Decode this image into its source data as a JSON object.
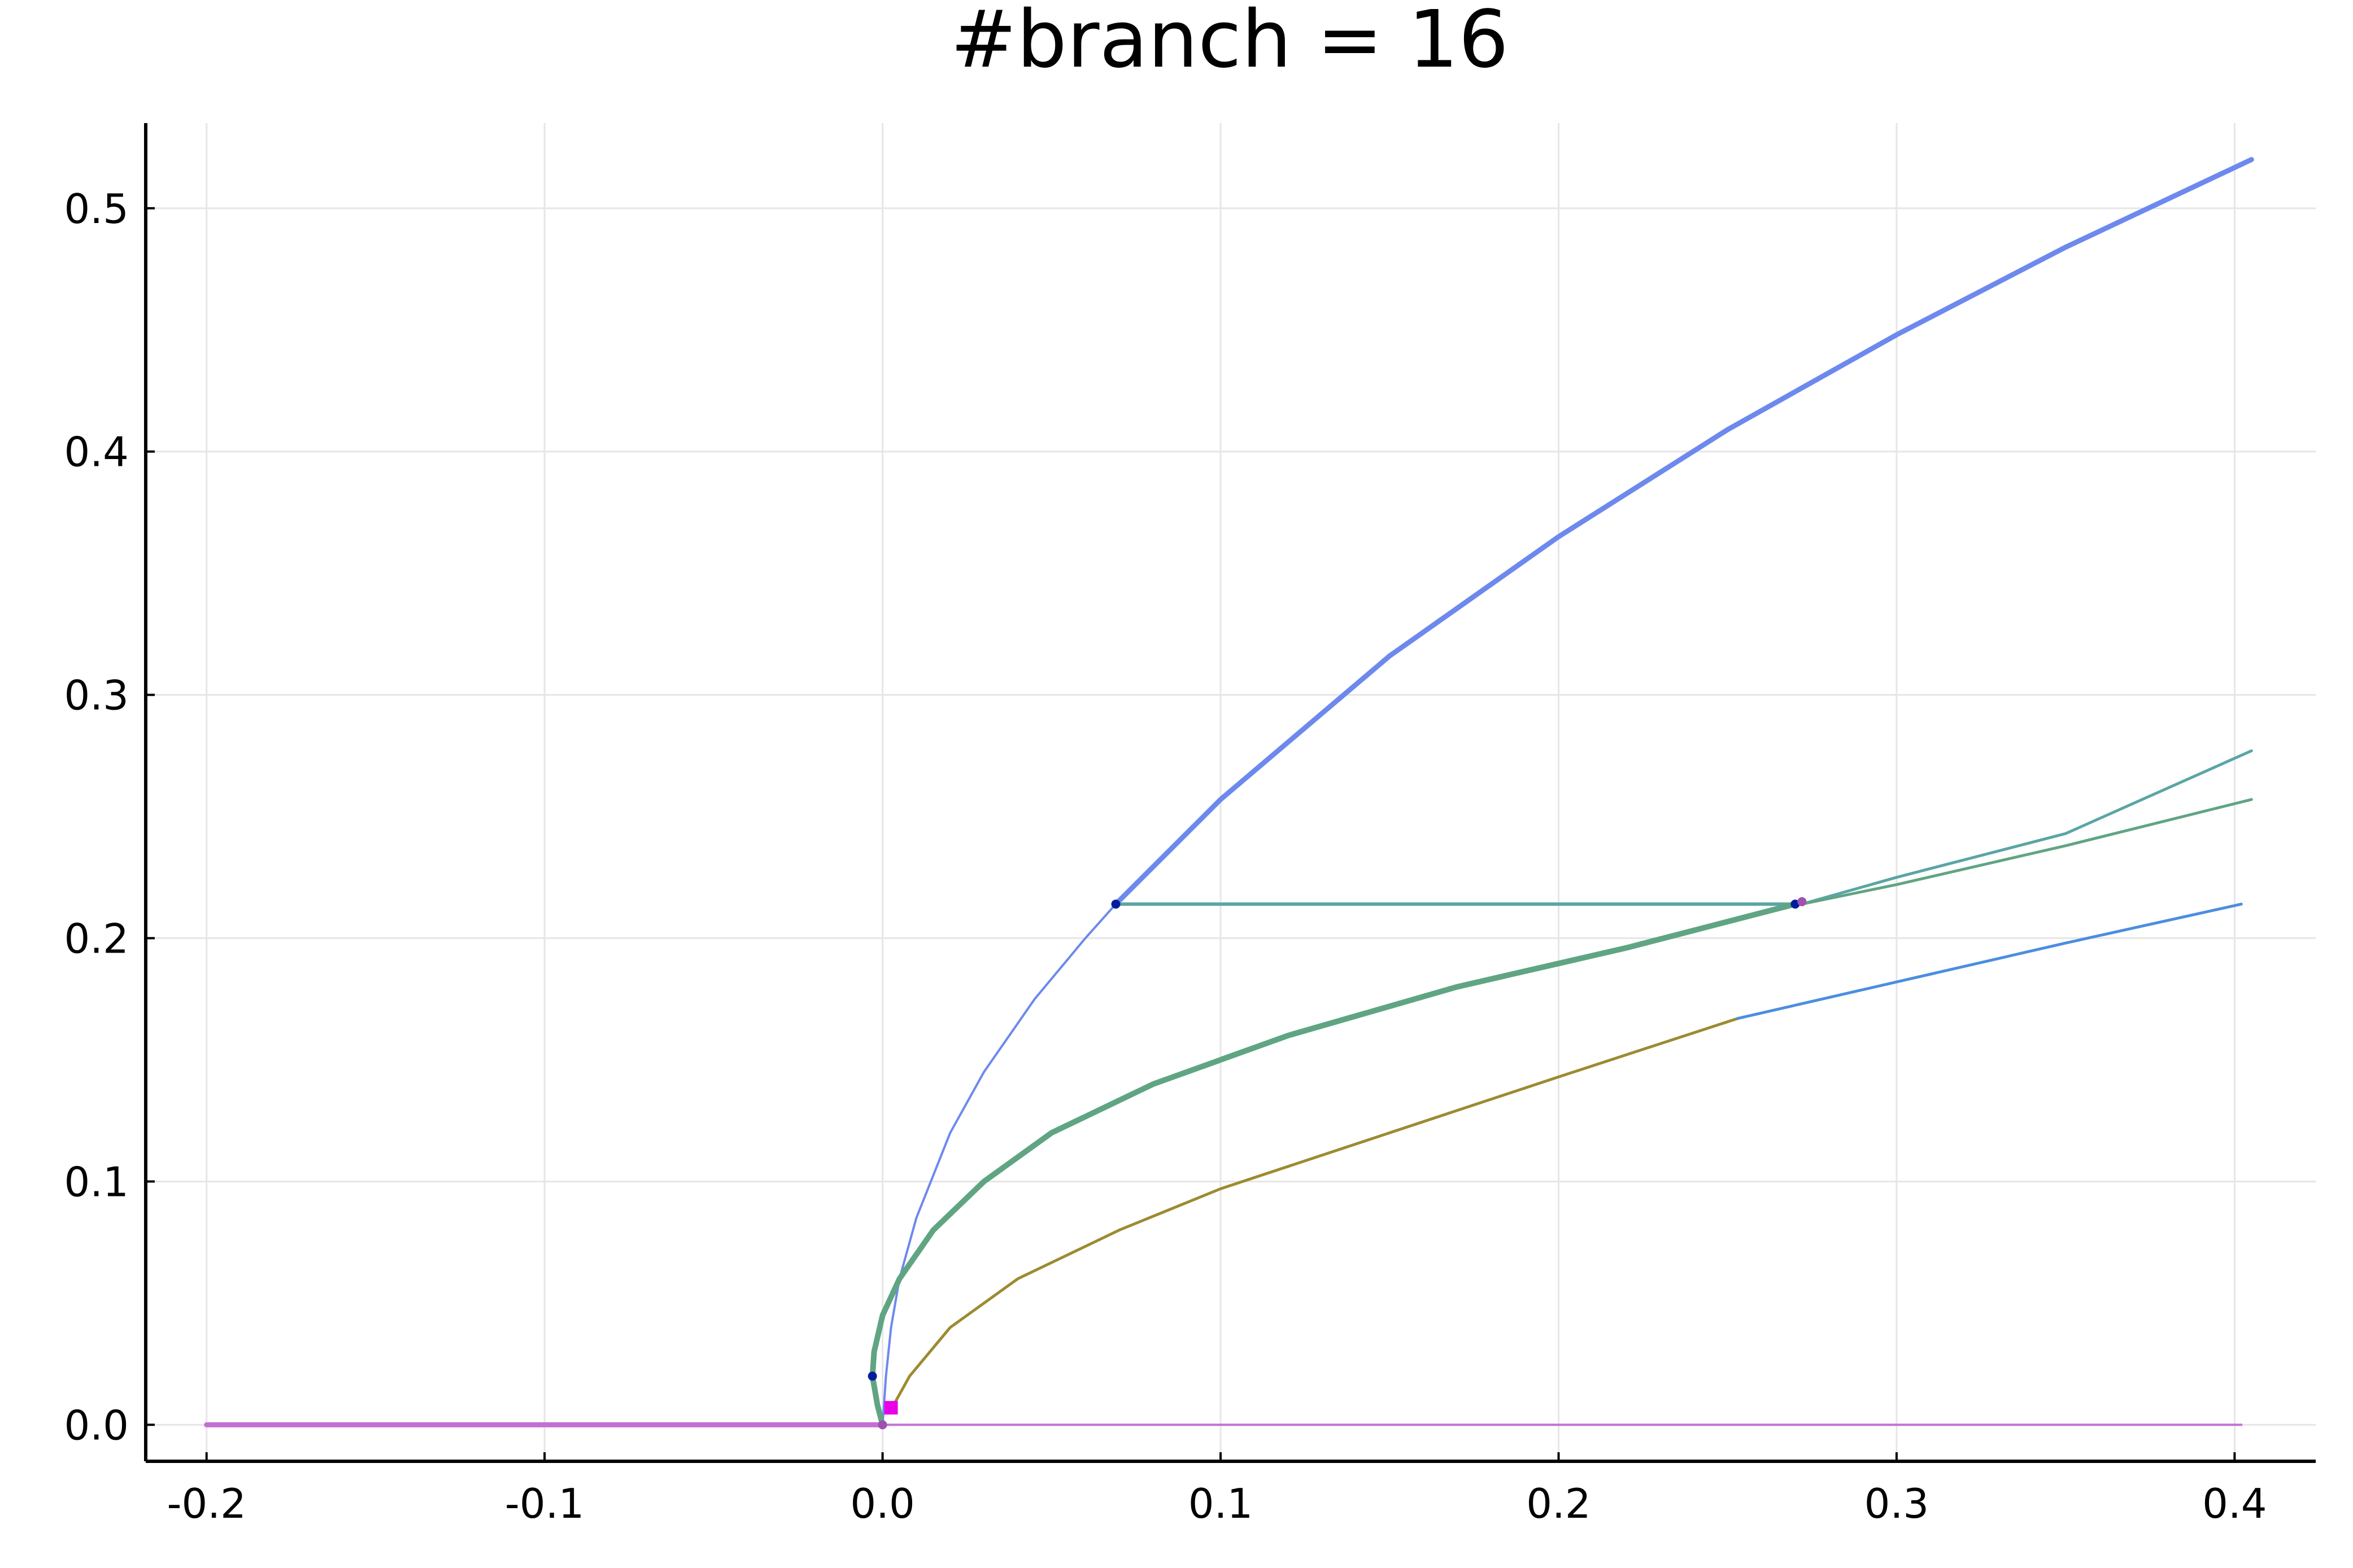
{
  "chart_data": {
    "type": "line",
    "title": "#branch = 16",
    "xlabel": "",
    "ylabel": "",
    "xlim": [
      -0.218,
      0.424
    ],
    "ylim": [
      -0.015,
      0.535
    ],
    "xticks": [
      -0.2,
      -0.1,
      0.0,
      0.1,
      0.2,
      0.3,
      0.4
    ],
    "xtick_labels": [
      "-0.2",
      "-0.1",
      "0.0",
      "0.1",
      "0.2",
      "0.3",
      "0.4"
    ],
    "yticks": [
      0.0,
      0.1,
      0.2,
      0.3,
      0.4,
      0.5
    ],
    "ytick_labels": [
      "0.0",
      "0.1",
      "0.2",
      "0.3",
      "0.4",
      "0.5"
    ],
    "grid": true,
    "legend": "none",
    "series": [
      {
        "color": "#c271d2",
        "width": 9,
        "points": [
          [
            -0.2,
            0.0
          ],
          [
            0.0,
            0.0
          ]
        ]
      },
      {
        "color": "#c271d2",
        "width": 4,
        "points": [
          [
            0.0,
            0.0
          ],
          [
            0.402,
            0.0
          ]
        ]
      },
      {
        "color": "#6d89ee",
        "width": 4,
        "points": [
          [
            0.0,
            0.0
          ],
          [
            0.001,
            0.02
          ],
          [
            0.0025,
            0.04
          ],
          [
            0.005,
            0.06
          ],
          [
            0.01,
            0.085
          ],
          [
            0.02,
            0.12
          ],
          [
            0.03,
            0.145
          ],
          [
            0.045,
            0.175
          ],
          [
            0.06,
            0.2
          ],
          [
            0.069,
            0.214
          ]
        ]
      },
      {
        "color": "#6d89ee",
        "width": 9,
        "points": [
          [
            0.069,
            0.214
          ],
          [
            0.1,
            0.257
          ],
          [
            0.15,
            0.316
          ],
          [
            0.2,
            0.365
          ],
          [
            0.25,
            0.409
          ],
          [
            0.3,
            0.448
          ],
          [
            0.35,
            0.484
          ],
          [
            0.405,
            0.52
          ]
        ]
      },
      {
        "color": "#5aa5a5",
        "width": 6,
        "points": [
          [
            0.069,
            0.214
          ],
          [
            0.272,
            0.214
          ]
        ]
      },
      {
        "color": "#5aa5a5",
        "width": 5,
        "points": [
          [
            0.272,
            0.214
          ],
          [
            0.3,
            0.225
          ],
          [
            0.35,
            0.243
          ],
          [
            0.405,
            0.277
          ]
        ]
      },
      {
        "color": "#60a583",
        "width": 5,
        "points": [
          [
            0.272,
            0.214
          ],
          [
            0.3,
            0.222
          ],
          [
            0.35,
            0.238
          ],
          [
            0.405,
            0.257
          ]
        ]
      },
      {
        "color": "#60a583",
        "width": 10,
        "points": [
          [
            0.0,
            0.0
          ],
          [
            -0.0015,
            0.008
          ],
          [
            -0.003,
            0.02
          ],
          [
            -0.0025,
            0.03
          ],
          [
            0.0,
            0.045
          ],
          [
            0.005,
            0.06
          ],
          [
            0.015,
            0.08
          ],
          [
            0.03,
            0.1
          ],
          [
            0.05,
            0.12
          ],
          [
            0.08,
            0.14
          ],
          [
            0.12,
            0.16
          ],
          [
            0.17,
            0.18
          ],
          [
            0.22,
            0.196
          ],
          [
            0.27,
            0.214
          ]
        ]
      },
      {
        "color": "#9c8b31",
        "width": 5,
        "points": [
          [
            0.002,
            0.005
          ],
          [
            0.008,
            0.02
          ],
          [
            0.02,
            0.04
          ],
          [
            0.04,
            0.06
          ],
          [
            0.07,
            0.08
          ],
          [
            0.1,
            0.097
          ],
          [
            0.15,
            0.12
          ],
          [
            0.2,
            0.143
          ],
          [
            0.253,
            0.167
          ]
        ]
      },
      {
        "color": "#4a8ee0",
        "width": 5,
        "points": [
          [
            0.253,
            0.167
          ],
          [
            0.3,
            0.182
          ],
          [
            0.35,
            0.198
          ],
          [
            0.402,
            0.214
          ]
        ]
      }
    ],
    "markers": [
      {
        "x": 0.069,
        "y": 0.214,
        "color": "#001e9c",
        "shape": "circle"
      },
      {
        "x": -0.003,
        "y": 0.02,
        "color": "#001e9c",
        "shape": "circle"
      },
      {
        "x": 0.27,
        "y": 0.214,
        "color": "#001e9c",
        "shape": "circle"
      },
      {
        "x": 0.272,
        "y": 0.215,
        "color": "#a050b0",
        "shape": "circle"
      },
      {
        "x": 0.0,
        "y": 0.0,
        "color": "#a050b0",
        "shape": "circle"
      },
      {
        "x": 0.0025,
        "y": 0.007,
        "color": "#e800e8",
        "shape": "square"
      }
    ]
  }
}
